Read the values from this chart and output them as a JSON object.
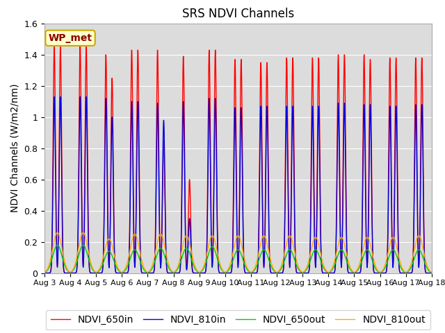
{
  "title": "SRS NDVI Channels",
  "ylabel": "NDVI Channels (W/m2/nm)",
  "ylim": [
    0,
    1.6
  ],
  "yticks": [
    0.0,
    0.2,
    0.4,
    0.6,
    0.8,
    1.0,
    1.2,
    1.4,
    1.6
  ],
  "xtick_labels": [
    "Aug 3",
    "Aug 4",
    "Aug 5",
    "Aug 6",
    "Aug 7",
    "Aug 8",
    "Aug 9",
    "Aug 10",
    "Aug 11",
    "Aug 12",
    "Aug 13",
    "Aug 14",
    "Aug 15",
    "Aug 16",
    "Aug 17",
    "Aug 18"
  ],
  "annotation": "WP_met",
  "legend_entries": [
    "NDVI_650in",
    "NDVI_810in",
    "NDVI_650out",
    "NDVI_810out"
  ],
  "line_colors": [
    "#ff0000",
    "#0000dd",
    "#00cc00",
    "#ffaa00"
  ],
  "background_color": "#dcdcdc",
  "title_fontsize": 12,
  "axis_fontsize": 10,
  "legend_fontsize": 10,
  "annotation_fontsize": 10,
  "num_days": 15,
  "peak1_650in": [
    1.45,
    1.46,
    1.4,
    1.43,
    1.43,
    1.39,
    1.43,
    1.37,
    1.35,
    1.38,
    1.38,
    1.4,
    1.4,
    1.38,
    1.38
  ],
  "peak2_650in": [
    1.45,
    1.45,
    1.25,
    1.43,
    0.85,
    0.6,
    1.43,
    1.37,
    1.35,
    1.38,
    1.38,
    1.4,
    1.37,
    1.38,
    1.38
  ],
  "peak1_810in": [
    1.13,
    1.13,
    1.12,
    1.1,
    1.09,
    1.1,
    1.12,
    1.06,
    1.07,
    1.07,
    1.07,
    1.09,
    1.08,
    1.07,
    1.08
  ],
  "peak2_810in": [
    1.13,
    1.13,
    1.0,
    1.1,
    0.98,
    0.35,
    1.12,
    1.06,
    1.07,
    1.07,
    1.07,
    1.09,
    1.08,
    1.07,
    1.08
  ],
  "peak_650out": [
    0.18,
    0.18,
    0.14,
    0.15,
    0.16,
    0.16,
    0.17,
    0.15,
    0.15,
    0.15,
    0.15,
    0.15,
    0.15,
    0.15,
    0.15
  ],
  "peak_810out": [
    0.26,
    0.26,
    0.22,
    0.25,
    0.25,
    0.24,
    0.24,
    0.24,
    0.24,
    0.24,
    0.23,
    0.23,
    0.23,
    0.23,
    0.24
  ]
}
